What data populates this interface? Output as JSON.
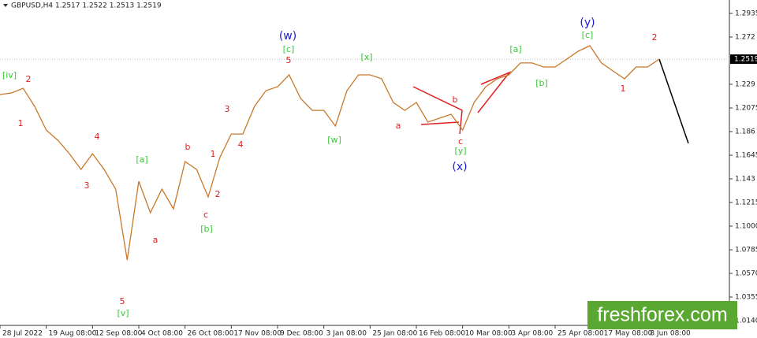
{
  "chart_data": {
    "type": "line",
    "title": "GBPUSD,H4  1.2517 1.2522 1.2513 1.2519",
    "categories": [
      "28 Jul 2022",
      null,
      null,
      null,
      "19 Aug 08:00",
      null,
      null,
      null,
      "12 Sep 08:00",
      null,
      null,
      null,
      "4 Oct 08:00",
      null,
      null,
      null,
      "26 Oct 08:00",
      null,
      null,
      null,
      "17 Nov 08:00",
      null,
      null,
      null,
      "9 Dec 08:00",
      null,
      null,
      null,
      "3 Jan 08:00",
      null,
      null,
      null,
      "25 Jan 08:00",
      null,
      null,
      null,
      "16 Feb 08:00",
      null,
      null,
      null,
      "10 Mar 08:00",
      null,
      null,
      null,
      "3 Apr 08:00",
      null,
      null,
      null,
      "25 Apr 08:00",
      null,
      null,
      null,
      "17 May 08:00",
      null,
      null,
      null,
      "8 Jun 08:00",
      null,
      null,
      null,
      null,
      null,
      null
    ],
    "series": [
      {
        "name": "GBPUSD",
        "color": "#c8782a",
        "values": [
          1.2197,
          1.2211,
          1.2254,
          1.2089,
          1.1874,
          1.1781,
          1.1659,
          1.1516,
          1.1659,
          1.1516,
          1.1337,
          1.0691,
          1.1408,
          1.1122,
          1.1337,
          1.1157,
          1.1587,
          1.1516,
          1.1265,
          1.1623,
          1.1838,
          1.1838,
          1.2089,
          1.2233,
          1.2268,
          1.2376,
          1.2161,
          1.2053,
          1.2053,
          1.191,
          1.2233,
          1.2376,
          1.2376,
          1.234,
          1.2125,
          1.2053,
          1.2125,
          1.1946,
          1.1982,
          1.2018,
          1.1874,
          1.2125,
          1.2268,
          1.234,
          1.2376,
          1.2484,
          1.2484,
          1.2448,
          1.2448,
          1.2519,
          1.2591,
          1.2641,
          1.2484,
          1.2412,
          1.234,
          1.2448,
          1.2448,
          1.2519,
          null,
          null,
          null,
          null,
          null
        ]
      }
    ],
    "ylim": [
      1.0097,
      1.3057
    ],
    "yticks": [
      1.2935,
      1.272,
      1.229,
      1.2075,
      1.186,
      1.1645,
      1.143,
      1.1215,
      {
        "value": 1.1,
        "label": "1.1000"
      },
      1.0785,
      {
        "value": 1.057,
        "label": "1.0570"
      },
      1.0355,
      {
        "value": 1.014,
        "label": "1.0140"
      }
    ],
    "current_price": 1.2519,
    "annotations": [
      {
        "text": "[iv]",
        "color": "#33cc33"
      },
      {
        "text": "2",
        "color": "#e02020"
      },
      {
        "text": "1",
        "color": "#e02020"
      },
      {
        "text": "4",
        "color": "#e02020"
      },
      {
        "text": "3",
        "color": "#e02020"
      },
      {
        "text": "[a]",
        "color": "#33cc33"
      },
      {
        "text": "5",
        "color": "#e02020"
      },
      {
        "text": "[v]",
        "color": "#33cc33"
      },
      {
        "text": "a",
        "color": "#e02020"
      },
      {
        "text": "b",
        "color": "#e02020"
      },
      {
        "text": "c",
        "color": "#e02020"
      },
      {
        "text": "[b]",
        "color": "#33cc33"
      },
      {
        "text": "1",
        "color": "#e02020"
      },
      {
        "text": "2",
        "color": "#e02020"
      },
      {
        "text": "3",
        "color": "#e02020"
      },
      {
        "text": "4",
        "color": "#e02020"
      },
      {
        "text": "(w)",
        "color": "#1a1acc"
      },
      {
        "text": "[c]",
        "color": "#33cc33"
      },
      {
        "text": "5",
        "color": "#e02020"
      },
      {
        "text": "[w]",
        "color": "#33cc33"
      },
      {
        "text": "[x]",
        "color": "#33cc33"
      },
      {
        "text": "a",
        "color": "#e02020"
      },
      {
        "text": "b",
        "color": "#e02020"
      },
      {
        "text": "c",
        "color": "#e02020"
      },
      {
        "text": "[y]",
        "color": "#33cc33"
      },
      {
        "text": "(x)",
        "color": "#1a1acc"
      },
      {
        "text": "[a]",
        "color": "#33cc33"
      },
      {
        "text": "[b]",
        "color": "#33cc33"
      },
      {
        "text": "(y)",
        "color": "#1a1acc"
      },
      {
        "text": "[c]",
        "color": "#33cc33"
      },
      {
        "text": "2",
        "color": "#e02020"
      },
      {
        "text": "1",
        "color": "#e02020"
      }
    ],
    "watermark": "freshforex.com"
  }
}
